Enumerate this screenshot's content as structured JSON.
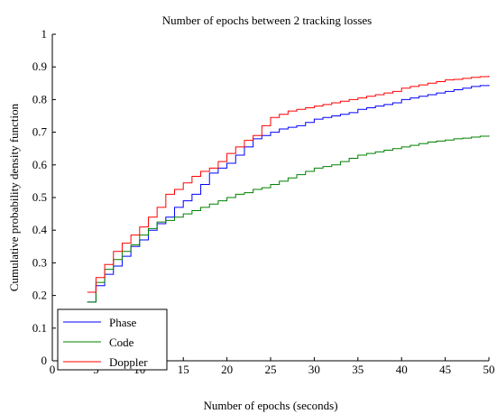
{
  "chart_data": {
    "type": "line",
    "title": "Number of epochs between 2 tracking losses",
    "xlabel": "Number of epochs (seconds)",
    "ylabel": "Cumulative probability density function",
    "xlim": [
      0,
      50
    ],
    "ylim": [
      0,
      1
    ],
    "x_ticks": [
      "0",
      "5",
      "10",
      "15",
      "20",
      "25",
      "30",
      "35",
      "40",
      "45",
      "50"
    ],
    "y_ticks": [
      "0",
      "0.1",
      "0.2",
      "0.3",
      "0.4",
      "0.5",
      "0.6",
      "0.7",
      "0.8",
      "0.9",
      "1"
    ],
    "grid": false,
    "legend_position": "bottom-left",
    "series": [
      {
        "name": "Phase",
        "color": "#0000ff",
        "step": true,
        "points": [
          [
            4,
            0.18
          ],
          [
            5,
            0.23
          ],
          [
            6,
            0.265
          ],
          [
            7,
            0.29
          ],
          [
            8,
            0.32
          ],
          [
            9,
            0.35
          ],
          [
            10,
            0.37
          ],
          [
            11,
            0.4
          ],
          [
            12,
            0.42
          ],
          [
            13,
            0.44
          ],
          [
            14,
            0.47
          ],
          [
            15,
            0.49
          ],
          [
            16,
            0.51
          ],
          [
            17,
            0.54
          ],
          [
            18,
            0.575
          ],
          [
            19,
            0.59
          ],
          [
            20,
            0.605
          ],
          [
            21,
            0.63
          ],
          [
            22,
            0.655
          ],
          [
            23,
            0.68
          ],
          [
            24,
            0.69
          ],
          [
            25,
            0.7
          ],
          [
            26,
            0.71
          ],
          [
            27,
            0.715
          ],
          [
            28,
            0.72
          ],
          [
            29,
            0.73
          ],
          [
            30,
            0.74
          ],
          [
            31,
            0.745
          ],
          [
            32,
            0.75
          ],
          [
            33,
            0.755
          ],
          [
            34,
            0.76
          ],
          [
            35,
            0.77
          ],
          [
            36,
            0.775
          ],
          [
            37,
            0.78
          ],
          [
            38,
            0.785
          ],
          [
            39,
            0.79
          ],
          [
            40,
            0.8
          ],
          [
            41,
            0.805
          ],
          [
            42,
            0.81
          ],
          [
            43,
            0.815
          ],
          [
            44,
            0.82
          ],
          [
            45,
            0.825
          ],
          [
            46,
            0.83
          ],
          [
            47,
            0.835
          ],
          [
            48,
            0.84
          ],
          [
            49,
            0.843
          ],
          [
            50,
            0.845
          ]
        ]
      },
      {
        "name": "Code",
        "color": "#008000",
        "step": true,
        "points": [
          [
            4,
            0.18
          ],
          [
            5,
            0.24
          ],
          [
            6,
            0.28
          ],
          [
            7,
            0.31
          ],
          [
            8,
            0.335
          ],
          [
            9,
            0.355
          ],
          [
            10,
            0.385
          ],
          [
            11,
            0.405
          ],
          [
            12,
            0.425
          ],
          [
            13,
            0.43
          ],
          [
            14,
            0.44
          ],
          [
            15,
            0.45
          ],
          [
            16,
            0.46
          ],
          [
            17,
            0.47
          ],
          [
            18,
            0.48
          ],
          [
            19,
            0.49
          ],
          [
            20,
            0.5
          ],
          [
            21,
            0.51
          ],
          [
            22,
            0.515
          ],
          [
            23,
            0.525
          ],
          [
            24,
            0.53
          ],
          [
            25,
            0.54
          ],
          [
            26,
            0.55
          ],
          [
            27,
            0.56
          ],
          [
            28,
            0.57
          ],
          [
            29,
            0.58
          ],
          [
            30,
            0.59
          ],
          [
            31,
            0.595
          ],
          [
            32,
            0.6
          ],
          [
            33,
            0.61
          ],
          [
            34,
            0.62
          ],
          [
            35,
            0.63
          ],
          [
            36,
            0.635
          ],
          [
            37,
            0.64
          ],
          [
            38,
            0.645
          ],
          [
            39,
            0.65
          ],
          [
            40,
            0.655
          ],
          [
            41,
            0.66
          ],
          [
            42,
            0.665
          ],
          [
            43,
            0.67
          ],
          [
            44,
            0.673
          ],
          [
            45,
            0.676
          ],
          [
            46,
            0.68
          ],
          [
            47,
            0.682
          ],
          [
            48,
            0.685
          ],
          [
            49,
            0.688
          ],
          [
            50,
            0.69
          ]
        ]
      },
      {
        "name": "Doppler",
        "color": "#ff0000",
        "step": true,
        "points": [
          [
            4,
            0.21
          ],
          [
            5,
            0.255
          ],
          [
            6,
            0.295
          ],
          [
            7,
            0.335
          ],
          [
            8,
            0.36
          ],
          [
            9,
            0.385
          ],
          [
            10,
            0.41
          ],
          [
            11,
            0.44
          ],
          [
            12,
            0.47
          ],
          [
            13,
            0.51
          ],
          [
            14,
            0.525
          ],
          [
            15,
            0.545
          ],
          [
            16,
            0.565
          ],
          [
            17,
            0.58
          ],
          [
            18,
            0.59
          ],
          [
            19,
            0.61
          ],
          [
            20,
            0.635
          ],
          [
            21,
            0.655
          ],
          [
            22,
            0.675
          ],
          [
            23,
            0.69
          ],
          [
            24,
            0.72
          ],
          [
            25,
            0.745
          ],
          [
            26,
            0.755
          ],
          [
            27,
            0.765
          ],
          [
            28,
            0.77
          ],
          [
            29,
            0.775
          ],
          [
            30,
            0.78
          ],
          [
            31,
            0.785
          ],
          [
            32,
            0.79
          ],
          [
            33,
            0.795
          ],
          [
            34,
            0.8
          ],
          [
            35,
            0.805
          ],
          [
            36,
            0.81
          ],
          [
            37,
            0.815
          ],
          [
            38,
            0.82
          ],
          [
            39,
            0.825
          ],
          [
            40,
            0.835
          ],
          [
            41,
            0.84
          ],
          [
            42,
            0.845
          ],
          [
            43,
            0.85
          ],
          [
            44,
            0.855
          ],
          [
            45,
            0.86
          ],
          [
            46,
            0.862
          ],
          [
            47,
            0.865
          ],
          [
            48,
            0.868
          ],
          [
            49,
            0.87
          ],
          [
            50,
            0.873
          ]
        ]
      }
    ]
  }
}
